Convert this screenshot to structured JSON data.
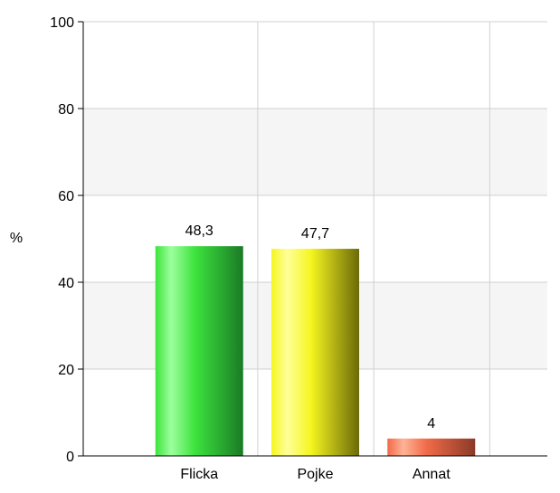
{
  "chart_data": {
    "type": "bar",
    "categories": [
      "Flicka",
      "Pojke",
      "Annat"
    ],
    "values": [
      48.3,
      47.7,
      4
    ],
    "value_labels": [
      "48,3",
      "47,7",
      "4"
    ],
    "ylabel": "%",
    "ylim": [
      0,
      100
    ],
    "yticks": [
      0,
      20,
      40,
      60,
      80,
      100
    ],
    "ytick_labels": [
      "0",
      "20",
      "40",
      "60",
      "80",
      "100"
    ],
    "grid": true,
    "alternating_band_color": "#f5f5f5",
    "gridline_color": "#d0d0d0",
    "bar_colors": [
      {
        "light": "#9dff9d",
        "mid": "#3de33d",
        "dark": "#1a7a26"
      },
      {
        "light": "#ffff99",
        "mid": "#f5f520",
        "dark": "#6b6a08"
      },
      {
        "light": "#ffb296",
        "mid": "#f06a48",
        "dark": "#8a3a28"
      }
    ]
  }
}
